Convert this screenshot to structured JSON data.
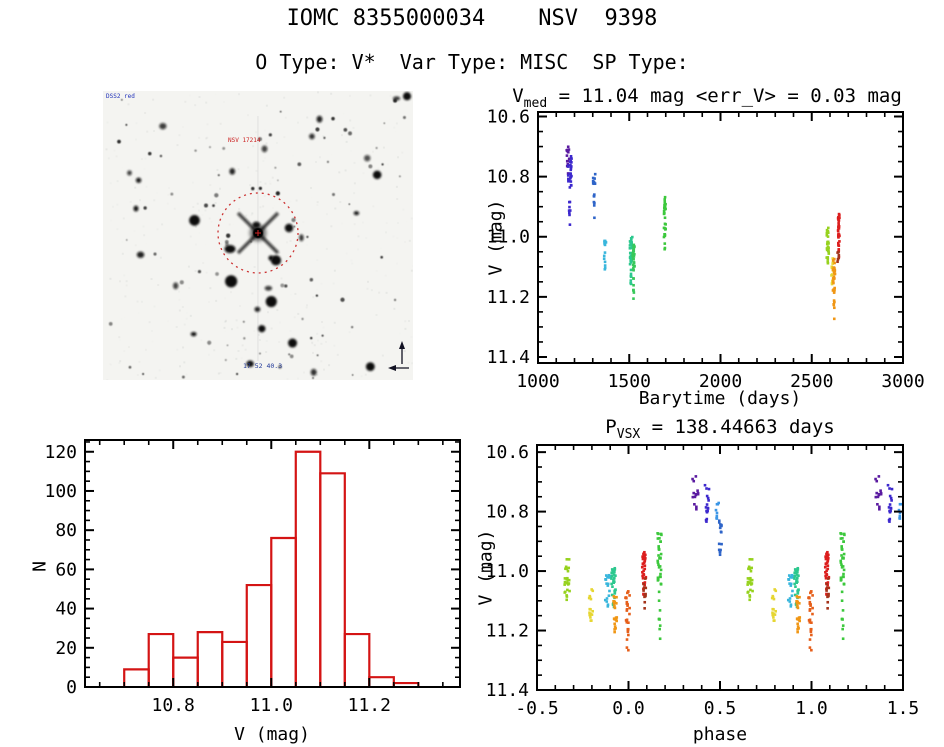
{
  "header": {
    "title": "IOMC 8355000034    NSV  9398",
    "subtitle": "O Type: V*  Var Type: MISC  SP Type:"
  },
  "starfield": {
    "survey_label": "DSS2 red",
    "star_label": "NSV 17214",
    "coord_label": "17 52 40.3",
    "circle_color": "#cc3333",
    "annotation_blue": "#2233bb",
    "annotation_red": "#cc2222",
    "seed": 99
  },
  "chart_data": [
    {
      "id": "lightcurve",
      "type": "scatter",
      "title_pre": "V",
      "title_sub": "med",
      "title_rest": " = 11.04 mag <err_V> = 0.03 mag",
      "xlabel": "Barytime (days)",
      "ylabel": "V (mag)",
      "x_range": [
        1000,
        3000
      ],
      "y_range": [
        10.585,
        11.42
      ],
      "xticks": [
        "1000",
        "1500",
        "2000",
        "2500",
        "3000"
      ],
      "yticks": [
        "10.6",
        "10.8",
        "11.0",
        "11.2",
        "11.4"
      ],
      "x_minor": 100,
      "y_minor": 0.05,
      "point_size": 2.6,
      "clusters": [
        {
          "x": 1163,
          "dx": 9,
          "color": "#5a1aa0",
          "dense": [
            10.69,
            10.79
          ],
          "nd": 11,
          "sparse": [
            10.68,
            10.84
          ],
          "ns": 4
        },
        {
          "x": 1174,
          "dx": 10,
          "color": "#3c28cd",
          "dense": [
            10.73,
            10.83
          ],
          "nd": 26,
          "sparse": [
            10.83,
            10.96
          ],
          "ns": 9
        },
        {
          "x": 1308,
          "dx": 6,
          "color": "#2e64c8",
          "dense": [
            10.78,
            10.83
          ],
          "nd": 9,
          "sparse": [
            10.85,
            10.94
          ],
          "ns": 7
        },
        {
          "x": 1368,
          "dx": 6,
          "color": "#38b6dc",
          "dense": [
            11.01,
            11.08
          ],
          "nd": 10,
          "sparse": [
            11.08,
            11.115
          ],
          "ns": 4
        },
        {
          "x": 1510,
          "dx": 7,
          "color": "#2cc88e",
          "dense": [
            11.0,
            11.1
          ],
          "nd": 34,
          "sparse": [
            11.1,
            11.17
          ],
          "ns": 7
        },
        {
          "x": 1524,
          "dx": 6,
          "color": "#38c85a",
          "dense": [
            11.01,
            11.11
          ],
          "nd": 26,
          "sparse": [
            11.11,
            11.24
          ],
          "ns": 9
        },
        {
          "x": 1695,
          "dx": 5,
          "color": "#3cc83c",
          "dense": [
            10.89,
            11.01
          ],
          "nd": 22,
          "sparse": [
            10.86,
            11.05
          ],
          "ns": 7
        },
        {
          "x": 2588,
          "dx": 6,
          "color": "#96d21e",
          "dense": [
            10.96,
            11.07
          ],
          "nd": 22,
          "sparse": [
            11.07,
            11.09
          ],
          "ns": 3
        },
        {
          "x": 2612,
          "dx": 5,
          "color": "#e6d632",
          "dense": [
            11.07,
            11.14
          ],
          "nd": 10,
          "sparse": [
            11.14,
            11.17
          ],
          "ns": 3
        },
        {
          "x": 2622,
          "dx": 6,
          "color": "#f09614",
          "dense": [
            11.07,
            11.18
          ],
          "nd": 22,
          "sparse": [
            11.18,
            11.28
          ],
          "ns": 9
        },
        {
          "x": 2648,
          "dx": 4,
          "color": "#dc1e1e",
          "dense": [
            10.92,
            11.04
          ],
          "nd": 26,
          "sparse": [
            11.04,
            11.07
          ],
          "ns": 4
        },
        {
          "x": 2645,
          "dx": 4,
          "color": "#a3331a",
          "dense": [
            11.05,
            11.09
          ],
          "nd": 6,
          "sparse": [],
          "ns": 0
        }
      ]
    },
    {
      "id": "histogram",
      "type": "histogram",
      "xlabel": "V (mag)",
      "ylabel": "N",
      "color": "#d41414",
      "bin_start": 10.7,
      "bin_width": 0.05,
      "counts": [
        9,
        27,
        15,
        28,
        23,
        52,
        76,
        120,
        109,
        27,
        5,
        2
      ],
      "x_range": [
        10.62,
        11.385
      ],
      "y_range": [
        126,
        0
      ],
      "xticks": [
        "10.8",
        "11.0",
        "11.2"
      ],
      "yticks": [
        "0",
        "20",
        "40",
        "60",
        "80",
        "100",
        "120"
      ],
      "x_minor": 0.05,
      "y_minor": 5
    },
    {
      "id": "phase",
      "type": "scatter",
      "fold": true,
      "title_pre": "P",
      "title_sub": "VSX",
      "title_rest": " = 138.44663 days",
      "xlabel": "phase",
      "ylabel": "V (mag)",
      "x_range": [
        -0.5,
        1.5
      ],
      "y_range": [
        10.576,
        11.4
      ],
      "xticks": [
        "-0.5",
        "0.0",
        "0.5",
        "1.0",
        "1.5"
      ],
      "yticks": [
        "10.6",
        "10.8",
        "11.0",
        "11.2",
        "11.4"
      ],
      "x_minor": 0.1,
      "y_minor": 0.05,
      "point_size": 2.6,
      "clusters": [
        {
          "x": 0.365,
          "dx": 0.018,
          "color": "#5a1aa0",
          "dense": [
            10.68,
            10.77
          ],
          "nd": 11,
          "sparse": [
            10.77,
            10.795
          ],
          "ns": 3
        },
        {
          "x": 0.428,
          "dx": 0.012,
          "color": "#3c28cd",
          "dense": [
            10.71,
            10.82
          ],
          "nd": 13,
          "sparse": [
            10.82,
            10.84
          ],
          "ns": 3
        },
        {
          "x": 0.487,
          "dx": 0.01,
          "color": "#3c96e6",
          "dense": [
            10.77,
            10.825
          ],
          "nd": 8,
          "sparse": [],
          "ns": 0
        },
        {
          "x": 0.503,
          "dx": 0.01,
          "color": "#2e64c8",
          "dense": [
            10.83,
            10.93
          ],
          "nd": 14,
          "sparse": [
            10.93,
            10.95
          ],
          "ns": 3
        },
        {
          "x": -0.335,
          "dx": 0.014,
          "color": "#96d21e",
          "dense": [
            10.96,
            11.08
          ],
          "nd": 22,
          "sparse": [
            11.08,
            11.1
          ],
          "ns": 3
        },
        {
          "x": -0.205,
          "dx": 0.01,
          "color": "#e6d632",
          "dense": [
            11.06,
            11.15
          ],
          "nd": 13,
          "sparse": [
            11.15,
            11.17
          ],
          "ns": 3
        },
        {
          "x": -0.115,
          "dx": 0.012,
          "color": "#38b6dc",
          "dense": [
            11.01,
            11.1
          ],
          "nd": 15,
          "sparse": [
            11.1,
            11.12
          ],
          "ns": 3
        },
        {
          "x": -0.082,
          "dx": 0.012,
          "color": "#2cc88e",
          "dense": [
            10.99,
            11.09
          ],
          "nd": 26,
          "sparse": [
            11.09,
            11.14
          ],
          "ns": 6
        },
        {
          "x": -0.073,
          "dx": 0.01,
          "color": "#f09614",
          "dense": [
            11.08,
            11.17
          ],
          "nd": 16,
          "sparse": [
            11.17,
            11.22
          ],
          "ns": 5
        },
        {
          "x": -0.005,
          "dx": 0.012,
          "color": "#e65f1a",
          "dense": [
            11.06,
            11.18
          ],
          "nd": 20,
          "sparse": [
            11.18,
            11.28
          ],
          "ns": 8
        },
        {
          "x": 0.085,
          "dx": 0.01,
          "color": "#dc1e1e",
          "dense": [
            10.93,
            11.05
          ],
          "nd": 30,
          "sparse": [
            11.05,
            11.08
          ],
          "ns": 5
        },
        {
          "x": 0.088,
          "dx": 0.007,
          "color": "#a3331a",
          "dense": [
            11.0,
            11.085
          ],
          "nd": 8,
          "sparse": [
            11.085,
            11.13
          ],
          "ns": 3
        },
        {
          "x": 0.17,
          "dx": 0.011,
          "color": "#3cc83c",
          "dense": [
            10.87,
            11.05
          ],
          "nd": 32,
          "sparse": [
            11.05,
            11.24
          ],
          "ns": 9
        }
      ]
    }
  ]
}
